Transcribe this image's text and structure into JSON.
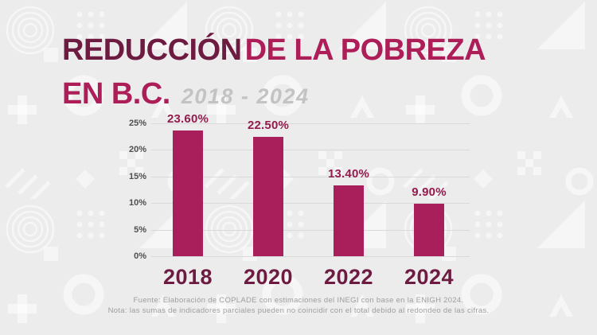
{
  "title": {
    "word_dark": "REDUCCIÓN",
    "word_bright": "DE LA POBREZA",
    "line2_bright": "EN B.C.",
    "period": "2018 - 2024"
  },
  "chart_data": {
    "type": "bar",
    "title": "Reducción de la pobreza en B.C. 2018 - 2024",
    "categories": [
      "2018",
      "2020",
      "2022",
      "2024"
    ],
    "values": [
      23.6,
      22.5,
      13.4,
      9.9
    ],
    "value_labels": [
      "23.60%",
      "22.50%",
      "13.40%",
      "9.90%"
    ],
    "y_ticks": [
      {
        "value": 25,
        "label": "25%"
      },
      {
        "value": 20,
        "label": "20%"
      },
      {
        "value": 15,
        "label": "15%"
      },
      {
        "value": 10,
        "label": "10%"
      },
      {
        "value": 5,
        "label": "5%"
      },
      {
        "value": 0,
        "label": "0%"
      }
    ],
    "ylim": [
      0,
      25
    ],
    "xlabel": "",
    "ylabel": "",
    "grid": true,
    "legend": "none",
    "bar_color": "#a91f5b",
    "value_label_color": "#941b4d",
    "category_label_color": "#6d1b40"
  },
  "footer": {
    "line1": "Fuente: Elaboración de COPLADE con estimaciones del INEGI con base en la ENIGH 2024.",
    "line2": "Nota: las sumas de indicadores parciales pueden no coincidir con el total debido al redondeo de las cifras."
  },
  "colors": {
    "background": "#ececec",
    "pattern_shapes": "#ffffff",
    "title_dark": "#6d1b40",
    "title_bright": "#ad1e59",
    "period_gray": "#c3c3c3",
    "tick_gray": "#4f4f4f",
    "gridline": "#d9d9d9",
    "footer_gray": "#9e9e9e"
  }
}
